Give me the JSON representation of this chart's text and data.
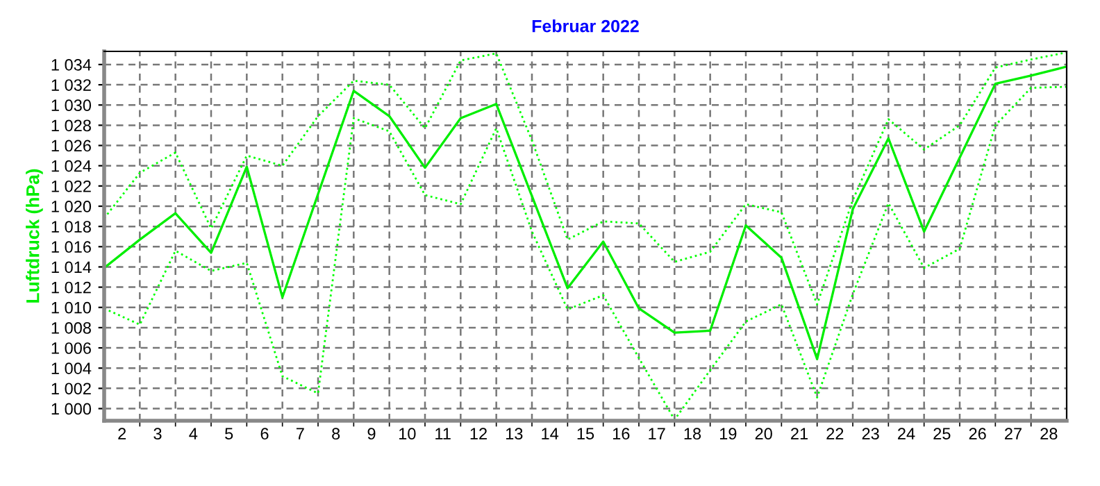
{
  "chart_data": {
    "type": "line",
    "title": "Februar 2022",
    "ylabel": "Luftdruck (hPa)",
    "x": [
      1.5,
      2.5,
      3.5,
      4.5,
      5.5,
      6.5,
      7.5,
      8.5,
      9.5,
      10.5,
      11.5,
      12.5,
      13.5,
      14.5,
      15.5,
      16.5,
      17.5,
      18.5,
      19.5,
      20.5,
      21.5,
      22.5,
      23.5,
      24.5,
      25.5,
      26.5,
      27.5,
      28.5
    ],
    "series": [
      {
        "color": "#00ff00",
        "line_style": "dotted",
        "values": [
          1018.8,
          1023.3,
          1025.3,
          1017.8,
          1025.0,
          1024.0,
          1028.9,
          1032.4,
          1032.0,
          1027.7,
          1034.4,
          1035.1,
          1026.5,
          1016.7,
          1018.5,
          1018.3,
          1014.5,
          1015.5,
          1020.2,
          1019.4,
          1010.3,
          1020.6,
          1028.6,
          1025.6,
          1028.0,
          1033.7,
          1034.5,
          1035.2
        ]
      },
      {
        "color": "#00ee00",
        "line_style": "solid",
        "values": [
          1013.9,
          1016.7,
          1019.3,
          1015.4,
          1023.9,
          1011.0,
          1021.2,
          1031.4,
          1028.9,
          1023.8,
          1028.7,
          1030.1,
          1021.0,
          1011.9,
          1016.5,
          1009.9,
          1007.5,
          1007.7,
          1018.1,
          1014.9,
          1004.9,
          1019.7,
          1026.7,
          1017.5,
          1024.8,
          1032.1,
          1032.9,
          1033.8
        ]
      },
      {
        "color": "#00ff00",
        "line_style": "dotted",
        "values": [
          1009.9,
          1008.3,
          1015.6,
          1013.6,
          1014.4,
          1003.2,
          1001.5,
          1028.7,
          1027.4,
          1021.1,
          1020.2,
          1027.7,
          1017.5,
          1009.8,
          1011.2,
          1005.0,
          998.9,
          1003.8,
          1008.6,
          1010.3,
          1001.1,
          1011.3,
          1020.3,
          1013.9,
          1015.8,
          1028.0,
          1031.7,
          1031.8
        ]
      }
    ],
    "xlim": [
      1.5,
      28.5
    ],
    "xticks": [
      2,
      3,
      4,
      5,
      6,
      7,
      8,
      9,
      10,
      11,
      12,
      13,
      14,
      15,
      16,
      17,
      18,
      19,
      20,
      21,
      22,
      23,
      24,
      25,
      26,
      27,
      28,
      {
        "value": 2.5,
        "label": null
      },
      {
        "value": 3.5,
        "label": null
      },
      {
        "value": 4.5,
        "label": null
      },
      {
        "value": 5.5,
        "label": null
      },
      {
        "value": 6.5,
        "label": null
      },
      {
        "value": 7.5,
        "label": null
      },
      {
        "value": 8.5,
        "label": null
      },
      {
        "value": 9.5,
        "label": null
      },
      {
        "value": 10.5,
        "label": null
      },
      {
        "value": 11.5,
        "label": null
      },
      {
        "value": 12.5,
        "label": null
      },
      {
        "value": 13.5,
        "label": null
      },
      {
        "value": 14.5,
        "label": null
      },
      {
        "value": 15.5,
        "label": null
      },
      {
        "value": 16.5,
        "label": null
      },
      {
        "value": 17.5,
        "label": null
      },
      {
        "value": 18.5,
        "label": null
      },
      {
        "value": 19.5,
        "label": null
      },
      {
        "value": 20.5,
        "label": null
      },
      {
        "value": 21.5,
        "label": null
      },
      {
        "value": 22.5,
        "label": null
      },
      {
        "value": 23.5,
        "label": null
      },
      {
        "value": 24.5,
        "label": null
      },
      {
        "value": 25.5,
        "label": null
      },
      {
        "value": 26.5,
        "label": null
      },
      {
        "value": 27.5,
        "label": null
      }
    ],
    "ylim": [
      998.8,
      1035.3
    ],
    "yticks": [
      {
        "value": 1000,
        "label": "1 000"
      },
      {
        "value": 1002,
        "label": "1 002"
      },
      {
        "value": 1004,
        "label": "1 004"
      },
      {
        "value": 1006,
        "label": "1 006"
      },
      {
        "value": 1008,
        "label": "1 008"
      },
      {
        "value": 1010,
        "label": "1 010"
      },
      {
        "value": 1012,
        "label": "1 012"
      },
      {
        "value": 1014,
        "label": "1 014"
      },
      {
        "value": 1016,
        "label": "1 016"
      },
      {
        "value": 1018,
        "label": "1 018"
      },
      {
        "value": 1020,
        "label": "1 020"
      },
      {
        "value": 1022,
        "label": "1 022"
      },
      {
        "value": 1024,
        "label": "1 024"
      },
      {
        "value": 1026,
        "label": "1 026"
      },
      {
        "value": 1028,
        "label": "1 028"
      },
      {
        "value": 1030,
        "label": "1 030"
      },
      {
        "value": 1032,
        "label": "1 032"
      },
      {
        "value": 1034,
        "label": "1 034"
      }
    ],
    "grid": true,
    "marker": "none"
  }
}
